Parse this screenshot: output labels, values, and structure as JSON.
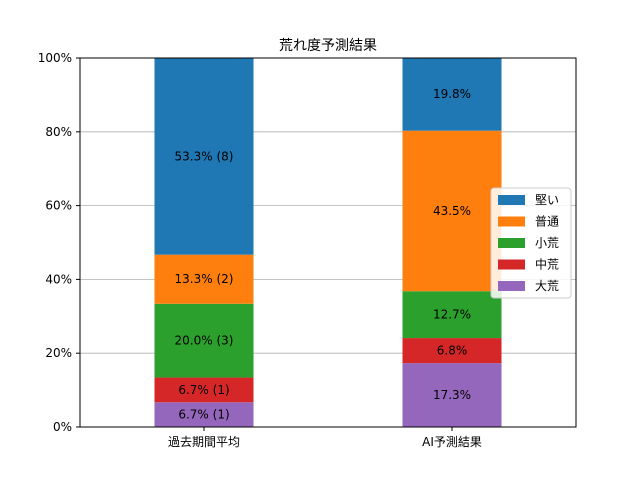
{
  "chart_data": {
    "type": "bar",
    "stacked": true,
    "title": "荒れ度予測結果",
    "xlabel": "",
    "ylabel": "",
    "categories": [
      "過去期間平均",
      "AI予測結果"
    ],
    "ylim": [
      0,
      100
    ],
    "yticks": [
      "0%",
      "20%",
      "40%",
      "60%",
      "80%",
      "100%"
    ],
    "grid": "horizontal",
    "legend_position": "right",
    "series": [
      {
        "name": "大荒",
        "color": "#9467bd",
        "values": [
          6.7,
          17.3
        ],
        "labels": [
          "6.7% (1)",
          "17.3%"
        ]
      },
      {
        "name": "中荒",
        "color": "#d62728",
        "values": [
          6.7,
          6.8
        ],
        "labels": [
          "6.7% (1)",
          "6.8%"
        ]
      },
      {
        "name": "小荒",
        "color": "#2ca02c",
        "values": [
          20.0,
          12.7
        ],
        "labels": [
          "20.0% (3)",
          "12.7%"
        ]
      },
      {
        "name": "普通",
        "color": "#ff7f0e",
        "values": [
          13.3,
          43.5
        ],
        "labels": [
          "13.3% (2)",
          "43.5%"
        ]
      },
      {
        "name": "堅い",
        "color": "#1f77b4",
        "values": [
          53.3,
          19.8
        ],
        "labels": [
          "53.3% (8)",
          "19.8%"
        ]
      }
    ]
  }
}
